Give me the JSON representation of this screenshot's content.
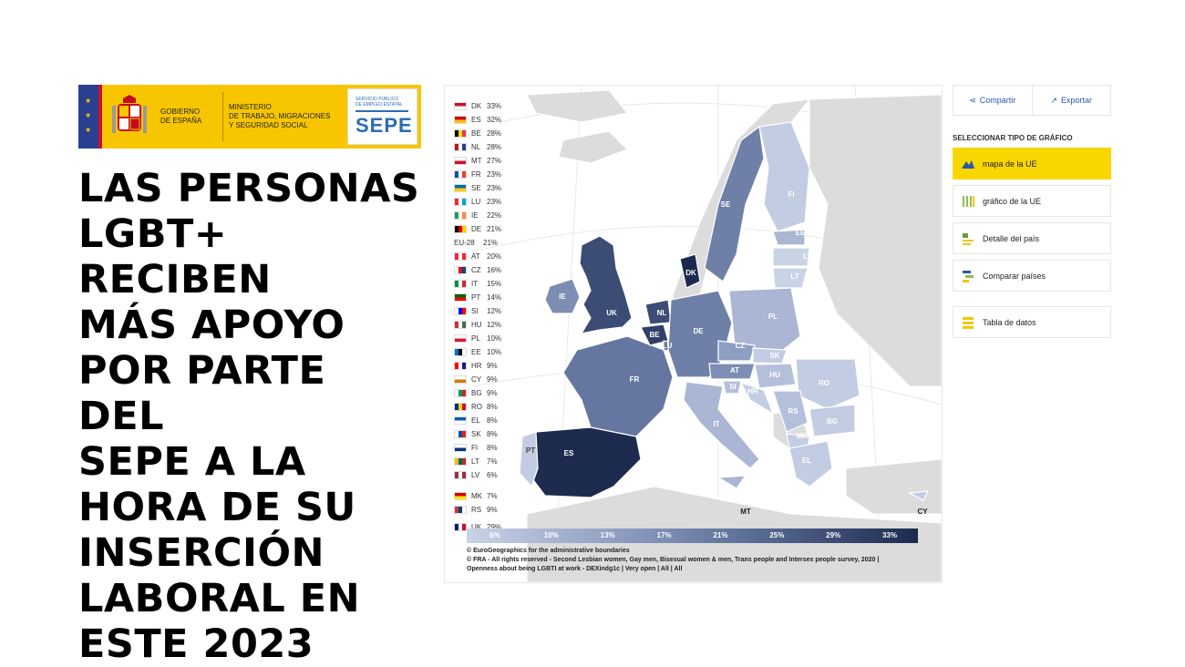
{
  "banner": {
    "gobierno": "GOBIERNO\nDE ESPAÑA",
    "ministerio": "MINISTERIO\nDE TRABAJO, MIGRACIONES\nY SEGURIDAD SOCIAL",
    "sepe_small": "SERVICIO PÚBLICO\nDE EMPLEO ESTATAL",
    "sepe": "SEPE"
  },
  "headline": "LAS PERSONAS\nLGBT+ RECIBEN\nMÁS APOYO\nPOR PARTE DEL\nSEPE A LA\nHORA DE SU\nINSERCIÓN\nLABORAL EN\nESTE 2023",
  "map": {
    "legend": [
      {
        "code": "DK",
        "value": "33%",
        "flag": [
          "#c8102e",
          "#ffffff"
        ]
      },
      {
        "code": "ES",
        "value": "32%",
        "flag": [
          "#c60b1e",
          "#ffc400"
        ]
      },
      {
        "code": "BE",
        "value": "28%",
        "flag": [
          "#000000",
          "#fdda24",
          "#ef3340"
        ]
      },
      {
        "code": "NL",
        "value": "28%",
        "flag": [
          "#ae1c28",
          "#ffffff",
          "#21468b"
        ]
      },
      {
        "code": "MT",
        "value": "27%",
        "flag": [
          "#ffffff",
          "#cf142b"
        ]
      },
      {
        "code": "FR",
        "value": "23%",
        "flag": [
          "#0055a4",
          "#ffffff",
          "#ef4135"
        ]
      },
      {
        "code": "SE",
        "value": "23%",
        "flag": [
          "#006aa7",
          "#fecc00"
        ]
      },
      {
        "code": "LU",
        "value": "23%",
        "flag": [
          "#ed2939",
          "#ffffff",
          "#00a1de"
        ]
      },
      {
        "code": "IE",
        "value": "22%",
        "flag": [
          "#169b62",
          "#ffffff",
          "#ff883e"
        ]
      },
      {
        "code": "DE",
        "value": "21%",
        "flag": [
          "#000000",
          "#dd0000",
          "#ffce00"
        ]
      },
      {
        "code": "EU-28",
        "value": "21%",
        "flag": []
      },
      {
        "code": "AT",
        "value": "20%",
        "flag": [
          "#ed2939",
          "#ffffff",
          "#ed2939"
        ]
      },
      {
        "code": "CZ",
        "value": "16%",
        "flag": [
          "#ffffff",
          "#d7141a",
          "#11457e"
        ]
      },
      {
        "code": "IT",
        "value": "15%",
        "flag": [
          "#009246",
          "#ffffff",
          "#ce2b37"
        ]
      },
      {
        "code": "PT",
        "value": "14%",
        "flag": [
          "#006600",
          "#ff0000"
        ]
      },
      {
        "code": "SI",
        "value": "12%",
        "flag": [
          "#ffffff",
          "#0000ff",
          "#ff0000"
        ]
      },
      {
        "code": "HU",
        "value": "12%",
        "flag": [
          "#cd2a3e",
          "#ffffff",
          "#436f4d"
        ]
      },
      {
        "code": "PL",
        "value": "10%",
        "flag": [
          "#ffffff",
          "#dc143c"
        ]
      },
      {
        "code": "EE",
        "value": "10%",
        "flag": [
          "#0072ce",
          "#000000",
          "#ffffff"
        ]
      },
      {
        "code": "HR",
        "value": "9%",
        "flag": [
          "#ff0000",
          "#ffffff",
          "#171796"
        ]
      },
      {
        "code": "CY",
        "value": "9%",
        "flag": [
          "#ffffff",
          "#d57800"
        ]
      },
      {
        "code": "BG",
        "value": "9%",
        "flag": [
          "#ffffff",
          "#00966e",
          "#d62612"
        ]
      },
      {
        "code": "RO",
        "value": "8%",
        "flag": [
          "#002b7f",
          "#fcd116",
          "#ce1126"
        ]
      },
      {
        "code": "EL",
        "value": "8%",
        "flag": [
          "#0d5eaf",
          "#ffffff"
        ]
      },
      {
        "code": "SK",
        "value": "8%",
        "flag": [
          "#ffffff",
          "#0b4ea2",
          "#ee1c25"
        ]
      },
      {
        "code": "FI",
        "value": "8%",
        "flag": [
          "#ffffff",
          "#003580"
        ]
      },
      {
        "code": "LT",
        "value": "7%",
        "flag": [
          "#fdb913",
          "#006a44",
          "#c1272d"
        ]
      },
      {
        "code": "LV",
        "value": "6%",
        "flag": [
          "#9e3039",
          "#ffffff",
          "#9e3039"
        ]
      },
      {
        "code": "MK",
        "value": "7%",
        "flag": [
          "#d20000",
          "#ffe600"
        ]
      },
      {
        "code": "RS",
        "value": "9%",
        "flag": [
          "#c6363c",
          "#0c4076",
          "#ffffff"
        ]
      },
      {
        "code": "UK",
        "value": "29%",
        "flag": [
          "#012169",
          "#ffffff",
          "#c8102e"
        ]
      }
    ],
    "colorbar_ticks": [
      "6%",
      "10%",
      "13%",
      "17%",
      "21%",
      "25%",
      "29%",
      "33%"
    ],
    "credits": [
      "© EuroGeographics for the administrative boundaries",
      "© FRA - All rights reserved - Second Lesbian women, Gay men, Bisexual women & men, Trans people and Intersex people survey, 2020 | Openness about being LGBTI at work - DEXindg1c | Very open | All | All"
    ]
  },
  "controls": {
    "share": "Compartir",
    "export": "Exportar",
    "select_title": "SELECCIONAR TIPO DE GRÁFICO",
    "options": [
      {
        "label": "mapa de la UE",
        "icon": "map-icon",
        "active": true
      },
      {
        "label": "gráfico de la UE",
        "icon": "bar-chart-icon",
        "active": false
      },
      {
        "label": "Detalle del país",
        "icon": "country-detail-icon",
        "active": false
      },
      {
        "label": "Comparar países",
        "icon": "compare-icon",
        "active": false
      }
    ],
    "table": {
      "label": "Tabla de datos",
      "icon": "table-icon"
    }
  },
  "colors": {
    "banner_yellow": "#f7c600",
    "active_yellow": "#f8d600",
    "link_blue": "#2a5aa6",
    "map_dark": "#1b2a4e",
    "map_light": "#c9d3e6"
  }
}
